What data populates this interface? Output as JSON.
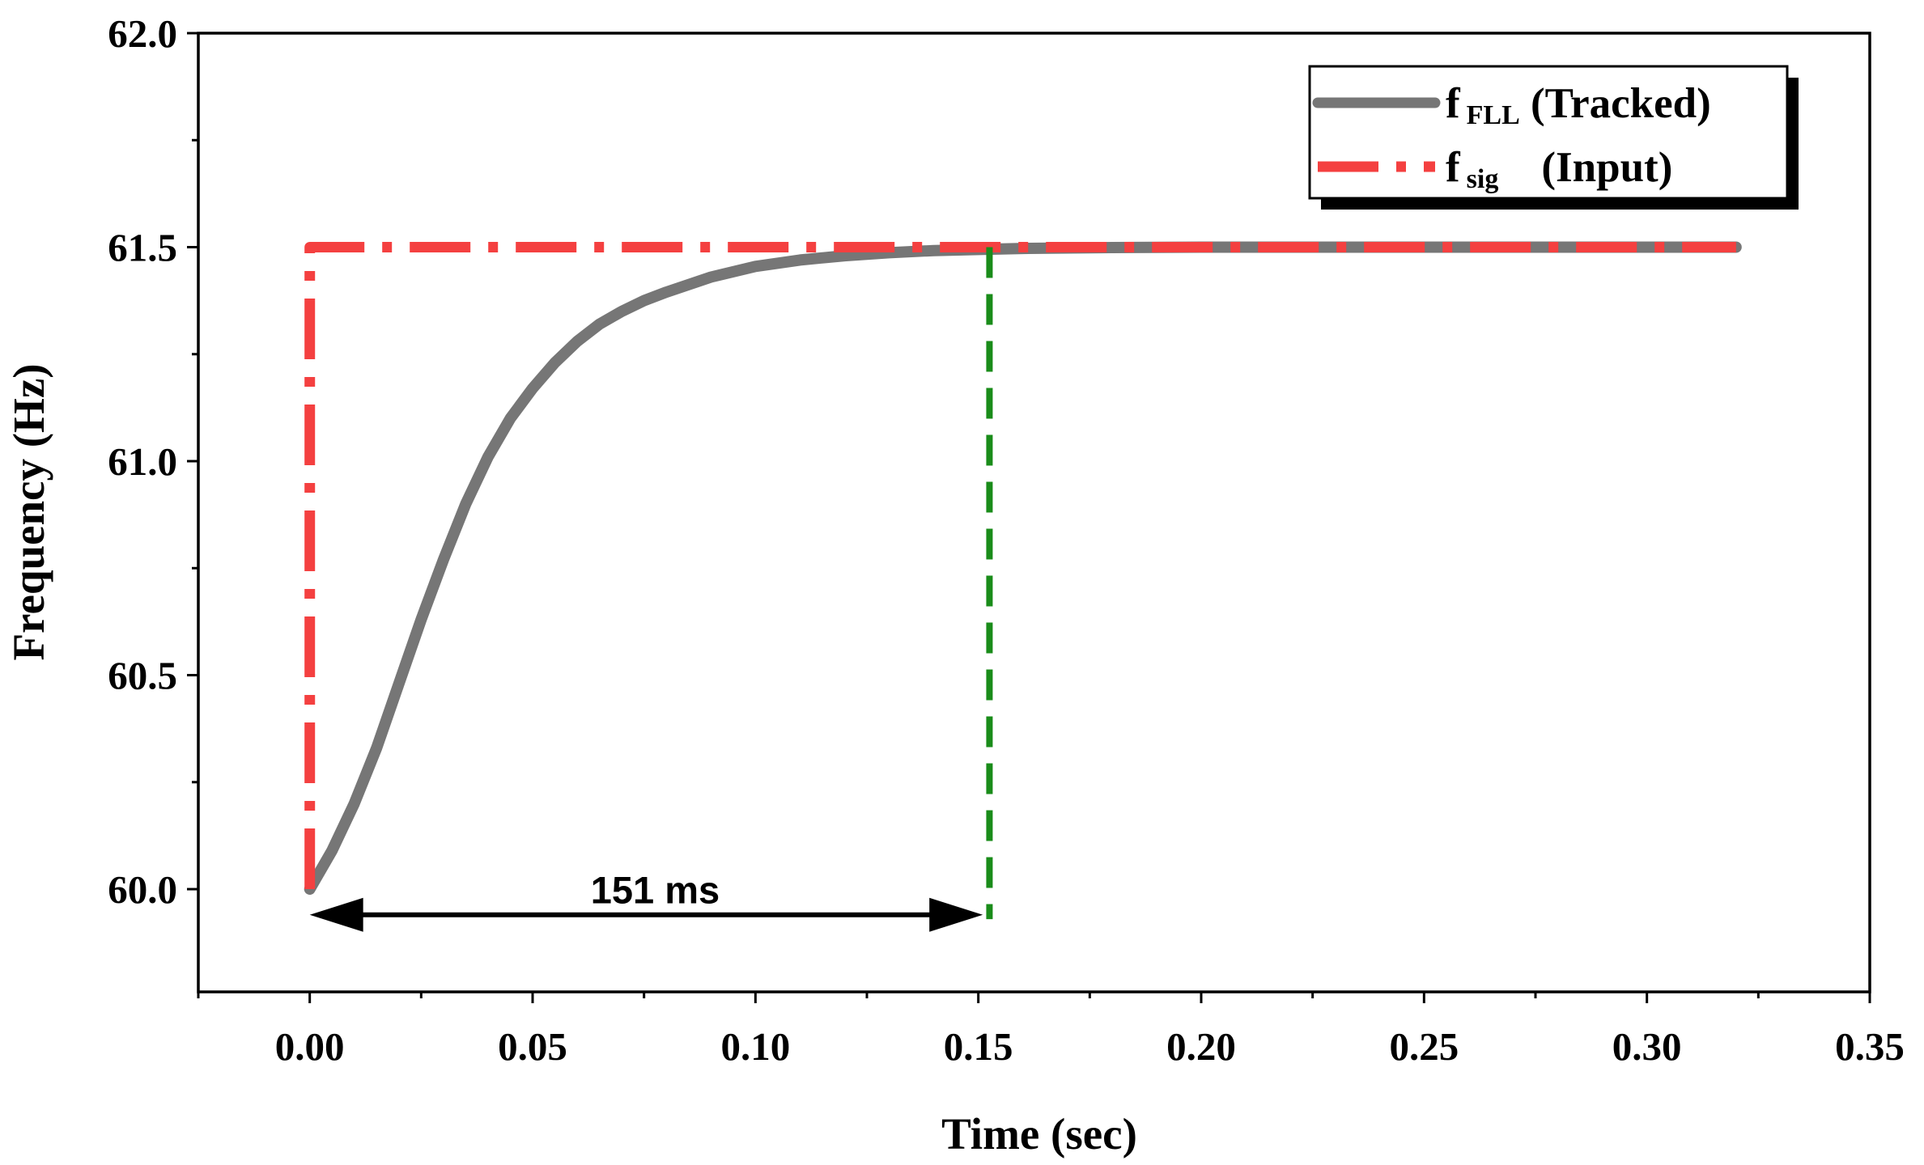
{
  "chart_data": {
    "type": "line",
    "xlabel": "Time (sec)",
    "ylabel": "Frequency (Hz)",
    "xlim": [
      -0.025,
      0.35
    ],
    "ylim": [
      59.76,
      62.0
    ],
    "x_ticks": [
      0.0,
      0.05,
      0.1,
      0.15,
      0.2,
      0.25,
      0.3,
      0.35
    ],
    "x_tick_labels": [
      "0.00",
      "0.05",
      "0.10",
      "0.15",
      "0.20",
      "0.25",
      "0.30",
      "0.35"
    ],
    "y_ticks": [
      60.0,
      60.5,
      61.0,
      61.5,
      62.0
    ],
    "y_tick_labels": [
      "60.0",
      "60.5",
      "61.0",
      "61.5",
      "62.0"
    ],
    "series": [
      {
        "name": "f_FLL (Tracked)",
        "style": "solid",
        "color": "#767676",
        "x": [
          0.0,
          0.005,
          0.01,
          0.015,
          0.02,
          0.025,
          0.03,
          0.035,
          0.04,
          0.045,
          0.05,
          0.055,
          0.06,
          0.065,
          0.07,
          0.075,
          0.08,
          0.09,
          0.1,
          0.11,
          0.12,
          0.13,
          0.14,
          0.151,
          0.16,
          0.18,
          0.2,
          0.22,
          0.25,
          0.28,
          0.3,
          0.32
        ],
        "y": [
          60.0,
          60.09,
          60.2,
          60.33,
          60.48,
          60.63,
          60.77,
          60.9,
          61.01,
          61.1,
          61.17,
          61.23,
          61.28,
          61.32,
          61.35,
          61.375,
          61.395,
          61.43,
          61.455,
          61.47,
          61.48,
          61.487,
          61.492,
          61.495,
          61.497,
          61.499,
          61.5,
          61.5,
          61.5,
          61.5,
          61.5,
          61.5
        ]
      },
      {
        "name": "f_sig (Input)",
        "style": "dash-dot",
        "color": "#f44040",
        "x": [
          0.0,
          0.0,
          0.32
        ],
        "y": [
          60.0,
          61.5,
          61.5
        ]
      }
    ],
    "legend": {
      "position": "top-right",
      "entries": [
        {
          "main": "f",
          "sub": "FLL",
          "rest": " (Tracked)"
        },
        {
          "main": "f",
          "sub": "sig",
          "rest": "    (Input)"
        }
      ]
    },
    "annotations": {
      "settling_line_x": 0.1525,
      "settling_line_color": "#1a8c1a",
      "arrow_from_x": 0.0,
      "arrow_to_x": 0.151,
      "arrow_y": 59.94,
      "label": "151 ms",
      "label_x": 0.0775,
      "label_y": 59.99
    }
  }
}
